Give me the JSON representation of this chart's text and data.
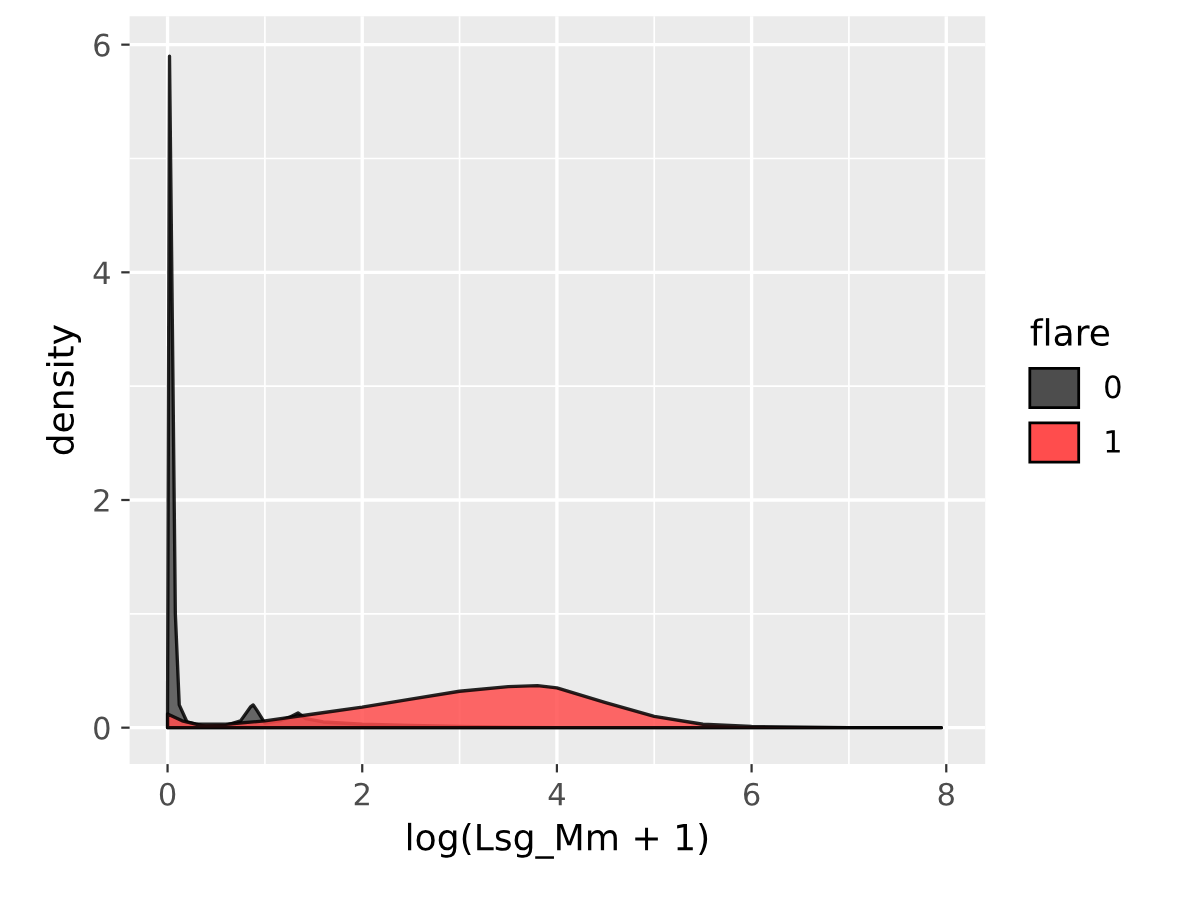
{
  "chart_data": {
    "type": "area",
    "xlabel": "log(Lsg_Mm + 1)",
    "ylabel": "density",
    "legend_title": "flare",
    "legend": "right",
    "grid": true,
    "xlim": [
      -0.39,
      8.4
    ],
    "ylim": [
      -0.32,
      6.25
    ],
    "xticks": [
      0,
      2,
      4,
      6,
      8
    ],
    "yticks": [
      0,
      2,
      4,
      6
    ],
    "series": [
      {
        "name": "0",
        "color": "#4d4d4d",
        "x": [
          0,
          0.02,
          0.05,
          0.08,
          0.12,
          0.2,
          0.4,
          0.6,
          0.75,
          0.85,
          0.88,
          0.92,
          1.0,
          1.15,
          1.25,
          1.34,
          1.42,
          1.6,
          2.0,
          2.5,
          3,
          4,
          5,
          6,
          7,
          7.95
        ],
        "values": [
          0.2,
          5.9,
          3.5,
          1.0,
          0.2,
          0.05,
          0.01,
          0.02,
          0.06,
          0.18,
          0.2,
          0.15,
          0.04,
          0.06,
          0.09,
          0.13,
          0.08,
          0.05,
          0.03,
          0.02,
          0.01,
          0,
          0,
          0,
          0,
          0
        ]
      },
      {
        "name": "1",
        "color": "#ff4d4d",
        "x": [
          0,
          0.05,
          0.15,
          0.3,
          0.6,
          1.0,
          1.5,
          2.0,
          2.5,
          3.0,
          3.5,
          3.8,
          4.0,
          4.5,
          5.0,
          5.5,
          6.0,
          7.0,
          7.95
        ],
        "values": [
          0.12,
          0.1,
          0.06,
          0.03,
          0.03,
          0.06,
          0.12,
          0.18,
          0.25,
          0.32,
          0.36,
          0.37,
          0.35,
          0.22,
          0.1,
          0.03,
          0.01,
          0,
          0
        ]
      }
    ]
  }
}
